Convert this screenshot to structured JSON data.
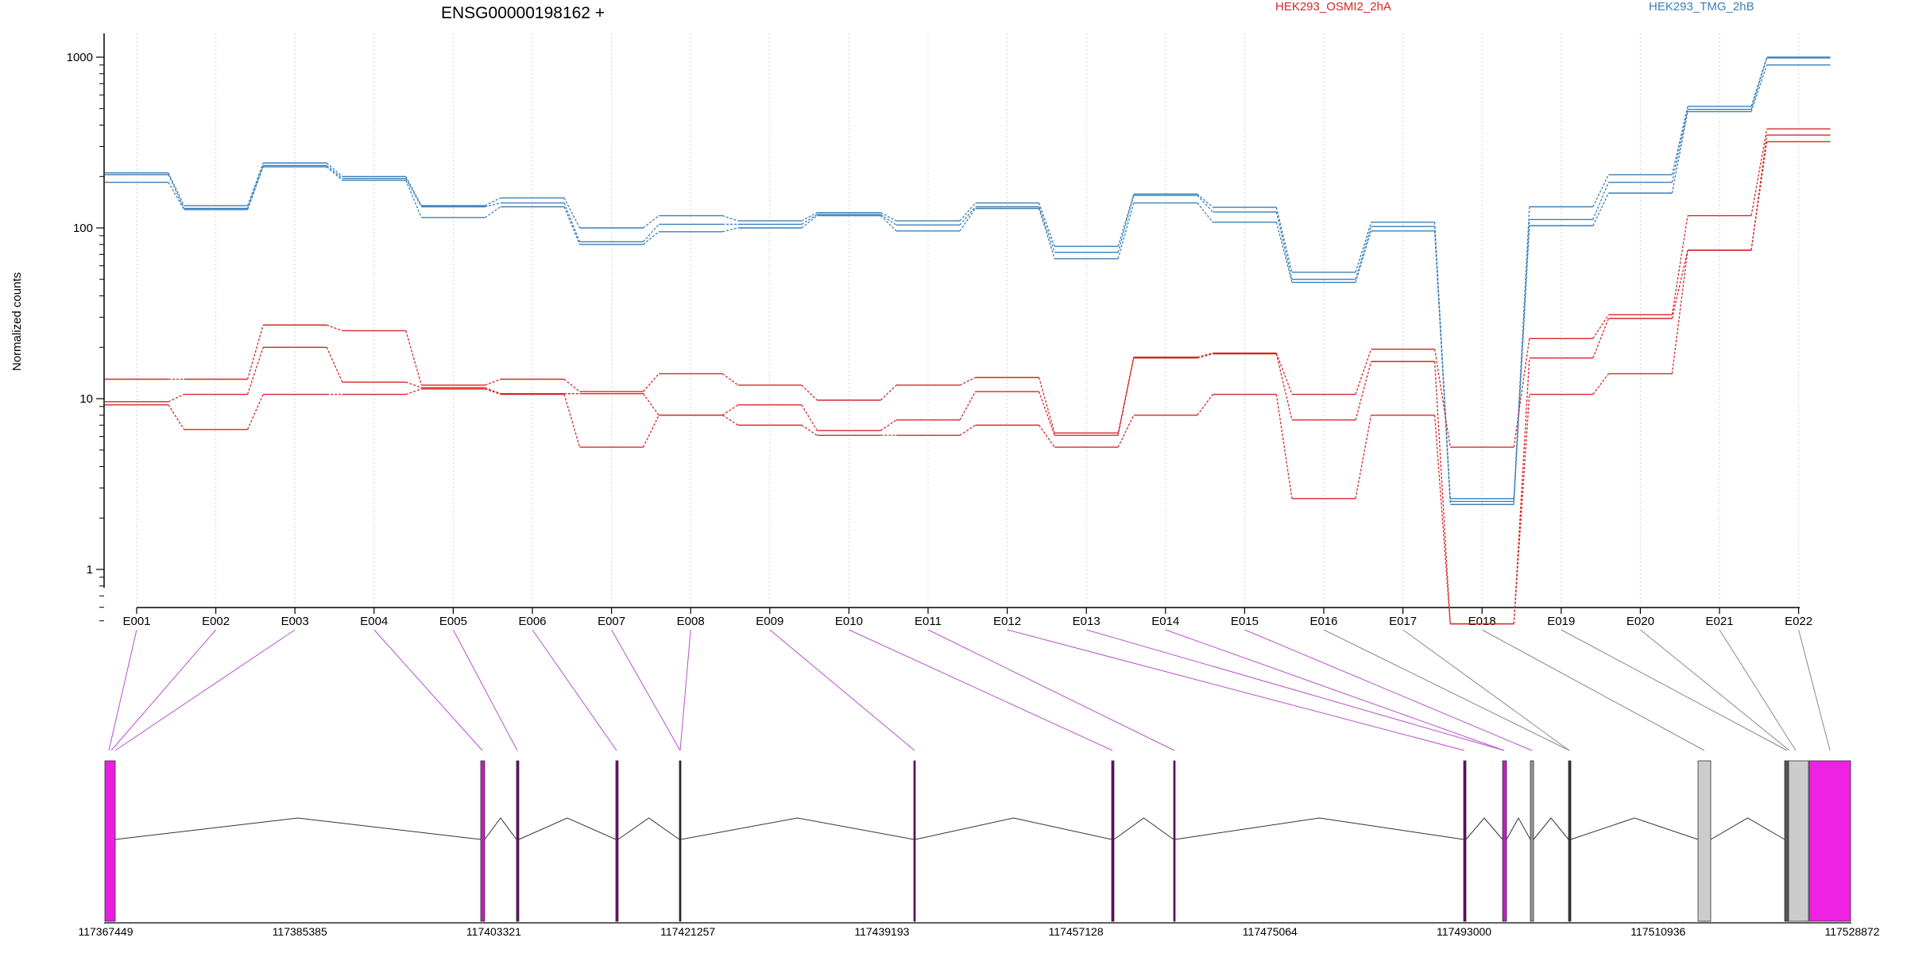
{
  "chart_data": {
    "type": "line",
    "title": "ENSG00000198162 +",
    "ylabel": "Normalized counts",
    "yscale": "log",
    "ylim": [
      0.5,
      1300
    ],
    "yticks": [
      "1",
      "10",
      "100",
      "1000"
    ],
    "yticks_values": [
      1,
      10,
      100,
      1000
    ],
    "grid": "vertical dotted at exon ticks",
    "legend": [
      {
        "name": "HEK293_OSMI2_2hA",
        "color": "#d62728"
      },
      {
        "name": "HEK293_TMG_2hB",
        "color": "#3a7fb8"
      }
    ],
    "categories": [
      "E001",
      "E002",
      "E003",
      "E004",
      "E005",
      "E006",
      "E007",
      "E008",
      "E009",
      "E010",
      "E011",
      "E012",
      "E013",
      "E014",
      "E015",
      "E016",
      "E017",
      "E018",
      "E019",
      "E020",
      "E021",
      "E022"
    ],
    "series": [
      {
        "name": "HEK293_TMG_2hB",
        "color": "#3a7fb8",
        "values": [
          210,
          135,
          240,
          200,
          135,
          150,
          100,
          118,
          110,
          123,
          110,
          140,
          78,
          158,
          132,
          55,
          108,
          2.6,
          133,
          205,
          515,
          1000
        ]
      },
      {
        "name": "HEK293_TMG_2hB",
        "color": "#3a7fb8",
        "values": [
          205,
          130,
          232,
          195,
          133,
          140,
          83,
          105,
          105,
          120,
          104,
          133,
          72,
          155,
          124,
          50,
          102,
          2.5,
          112,
          185,
          495,
          990
        ]
      },
      {
        "name": "HEK293_TMG_2hB",
        "color": "#3a7fb8",
        "values": [
          185,
          128,
          228,
          190,
          115,
          133,
          80,
          95,
          100,
          118,
          96,
          130,
          66,
          140,
          108,
          48,
          96,
          2.4,
          103,
          160,
          480,
          900
        ]
      },
      {
        "name": "HEK293_OSMI2_2hA",
        "color": "#d62728",
        "values": [
          13,
          13,
          27,
          25,
          12,
          13,
          11,
          14,
          12,
          9.8,
          12,
          13.3,
          6.3,
          17.5,
          18.5,
          10.6,
          19.5,
          5.2,
          22.5,
          31,
          118,
          380
        ]
      },
      {
        "name": "HEK293_OSMI2_2hA",
        "color": "#d62728",
        "values": [
          9.6,
          10.6,
          20,
          12.5,
          11.6,
          10.7,
          10.7,
          8,
          9.2,
          6.5,
          7.5,
          11,
          6.1,
          17.3,
          18.3,
          7.5,
          16.5,
          0.48,
          17.3,
          29.5,
          74,
          350
        ]
      },
      {
        "name": "HEK293_OSMI2_2hA",
        "color": "#d62728",
        "values": [
          9.2,
          6.6,
          10.6,
          10.6,
          11.4,
          10.6,
          5.2,
          8,
          7,
          6.1,
          6.1,
          7,
          5.2,
          8,
          10.6,
          2.6,
          8,
          0.48,
          10.6,
          14,
          74,
          320
        ]
      }
    ],
    "gene_model": {
      "genomic_ticks": [
        "117367449",
        "117385385",
        "117403321",
        "117421257",
        "117439193",
        "117457128",
        "117475064",
        "117493000",
        "117510936",
        "117528872"
      ]
    }
  }
}
